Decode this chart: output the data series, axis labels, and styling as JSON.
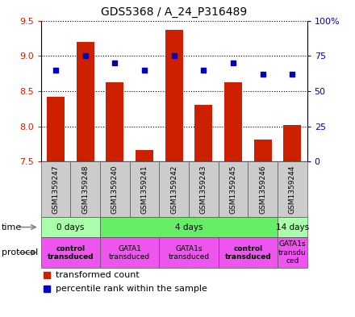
{
  "title": "GDS5368 / A_24_P316489",
  "samples": [
    "GSM1359247",
    "GSM1359248",
    "GSM1359240",
    "GSM1359241",
    "GSM1359242",
    "GSM1359243",
    "GSM1359245",
    "GSM1359246",
    "GSM1359244"
  ],
  "transformed_count": [
    8.42,
    9.2,
    8.62,
    7.67,
    9.37,
    8.31,
    8.62,
    7.81,
    8.02
  ],
  "percentile_rank": [
    65,
    75,
    70,
    65,
    75,
    65,
    70,
    62,
    62
  ],
  "ylim": [
    7.5,
    9.5
  ],
  "yticks_left": [
    7.5,
    8.0,
    8.5,
    9.0,
    9.5
  ],
  "right_yticks": [
    0,
    25,
    50,
    75,
    100
  ],
  "right_yticklabels": [
    "0",
    "25",
    "50",
    "75",
    "100%"
  ],
  "bar_color": "#cc2000",
  "dot_color": "#0000bb",
  "bar_bottom": 7.5,
  "time_groups": [
    {
      "label": "0 days",
      "start": 0,
      "end": 2,
      "color": "#aaffaa"
    },
    {
      "label": "4 days",
      "start": 2,
      "end": 8,
      "color": "#66ee66"
    },
    {
      "label": "14 days",
      "start": 8,
      "end": 9,
      "color": "#aaffaa"
    }
  ],
  "protocol_groups": [
    {
      "label": "control\ntransduced",
      "start": 0,
      "end": 2,
      "color": "#ee55ee",
      "bold": true
    },
    {
      "label": "GATA1\ntransduced",
      "start": 2,
      "end": 4,
      "color": "#ee55ee",
      "bold": false
    },
    {
      "label": "GATA1s\ntransduced",
      "start": 4,
      "end": 6,
      "color": "#ee55ee",
      "bold": false
    },
    {
      "label": "control\ntransduced",
      "start": 6,
      "end": 8,
      "color": "#ee55ee",
      "bold": true
    },
    {
      "label": "GATA1s\ntransdu\nced",
      "start": 8,
      "end": 9,
      "color": "#ee55ee",
      "bold": false
    }
  ],
  "legend_items": [
    {
      "color": "#cc2000",
      "label": "transformed count"
    },
    {
      "color": "#0000bb",
      "label": "percentile rank within the sample"
    }
  ]
}
